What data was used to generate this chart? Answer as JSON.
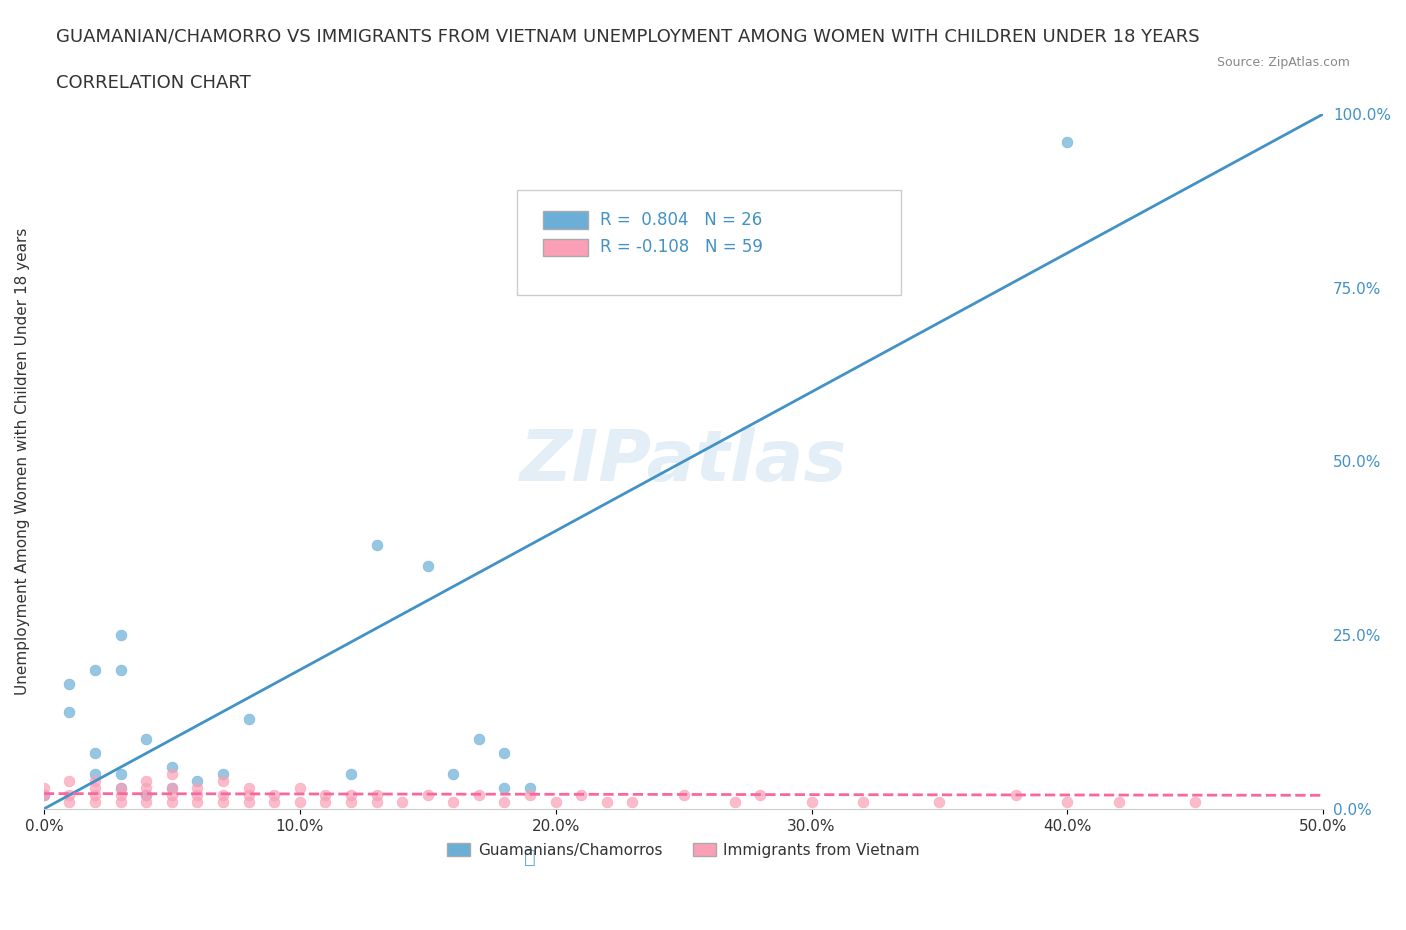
{
  "title_line1": "GUAMANIAN/CHAMORRO VS IMMIGRANTS FROM VIETNAM UNEMPLOYMENT AMONG WOMEN WITH CHILDREN UNDER 18 YEARS",
  "title_line2": "CORRELATION CHART",
  "source": "Source: ZipAtlas.com",
  "xlabel": "",
  "ylabel": "Unemployment Among Women with Children Under 18 years",
  "xmin": 0.0,
  "xmax": 0.5,
  "ymin": 0.0,
  "ymax": 1.0,
  "xticks": [
    0.0,
    0.1,
    0.2,
    0.3,
    0.4,
    0.5
  ],
  "xtick_labels": [
    "0.0%",
    "10.0%",
    "20.0%",
    "30.0%",
    "40.0%",
    "50.0%"
  ],
  "yticks_right": [
    0.0,
    0.25,
    0.5,
    0.75,
    1.0
  ],
  "ytick_right_labels": [
    "0.0%",
    "25.0%",
    "50.0%",
    "75.0%",
    "100.0%"
  ],
  "grid_color": "#cccccc",
  "background_color": "#ffffff",
  "blue_color": "#6baed6",
  "pink_color": "#fa9fb5",
  "blue_line_color": "#4292c6",
  "pink_line_color": "#f768a1",
  "R_blue": 0.804,
  "N_blue": 26,
  "R_pink": -0.108,
  "N_pink": 59,
  "legend_group1": "Guamanians/Chamorros",
  "legend_group2": "Immigrants from Vietnam",
  "watermark": "ZIPatlas",
  "blue_scatter_x": [
    0.0,
    0.01,
    0.01,
    0.02,
    0.02,
    0.02,
    0.03,
    0.03,
    0.03,
    0.03,
    0.04,
    0.04,
    0.05,
    0.05,
    0.06,
    0.07,
    0.08,
    0.12,
    0.13,
    0.15,
    0.16,
    0.17,
    0.18,
    0.18,
    0.19,
    0.4
  ],
  "blue_scatter_y": [
    0.02,
    0.14,
    0.18,
    0.05,
    0.08,
    0.2,
    0.03,
    0.05,
    0.2,
    0.25,
    0.02,
    0.1,
    0.03,
    0.06,
    0.04,
    0.05,
    0.13,
    0.05,
    0.38,
    0.35,
    0.05,
    0.1,
    0.03,
    0.08,
    0.03,
    0.96
  ],
  "pink_scatter_x": [
    0.0,
    0.0,
    0.01,
    0.01,
    0.01,
    0.02,
    0.02,
    0.02,
    0.02,
    0.03,
    0.03,
    0.03,
    0.04,
    0.04,
    0.04,
    0.04,
    0.05,
    0.05,
    0.05,
    0.05,
    0.06,
    0.06,
    0.06,
    0.07,
    0.07,
    0.07,
    0.08,
    0.08,
    0.08,
    0.09,
    0.09,
    0.1,
    0.1,
    0.11,
    0.11,
    0.12,
    0.12,
    0.13,
    0.13,
    0.14,
    0.15,
    0.16,
    0.17,
    0.18,
    0.19,
    0.2,
    0.21,
    0.22,
    0.23,
    0.25,
    0.27,
    0.28,
    0.3,
    0.32,
    0.35,
    0.38,
    0.4,
    0.42,
    0.45
  ],
  "pink_scatter_y": [
    0.02,
    0.03,
    0.01,
    0.02,
    0.04,
    0.01,
    0.02,
    0.03,
    0.04,
    0.01,
    0.02,
    0.03,
    0.01,
    0.02,
    0.03,
    0.04,
    0.01,
    0.02,
    0.03,
    0.05,
    0.01,
    0.02,
    0.03,
    0.01,
    0.02,
    0.04,
    0.01,
    0.02,
    0.03,
    0.01,
    0.02,
    0.01,
    0.03,
    0.01,
    0.02,
    0.01,
    0.02,
    0.01,
    0.02,
    0.01,
    0.02,
    0.01,
    0.02,
    0.01,
    0.02,
    0.01,
    0.02,
    0.01,
    0.01,
    0.02,
    0.01,
    0.02,
    0.01,
    0.01,
    0.01,
    0.02,
    0.01,
    0.01,
    0.01
  ]
}
